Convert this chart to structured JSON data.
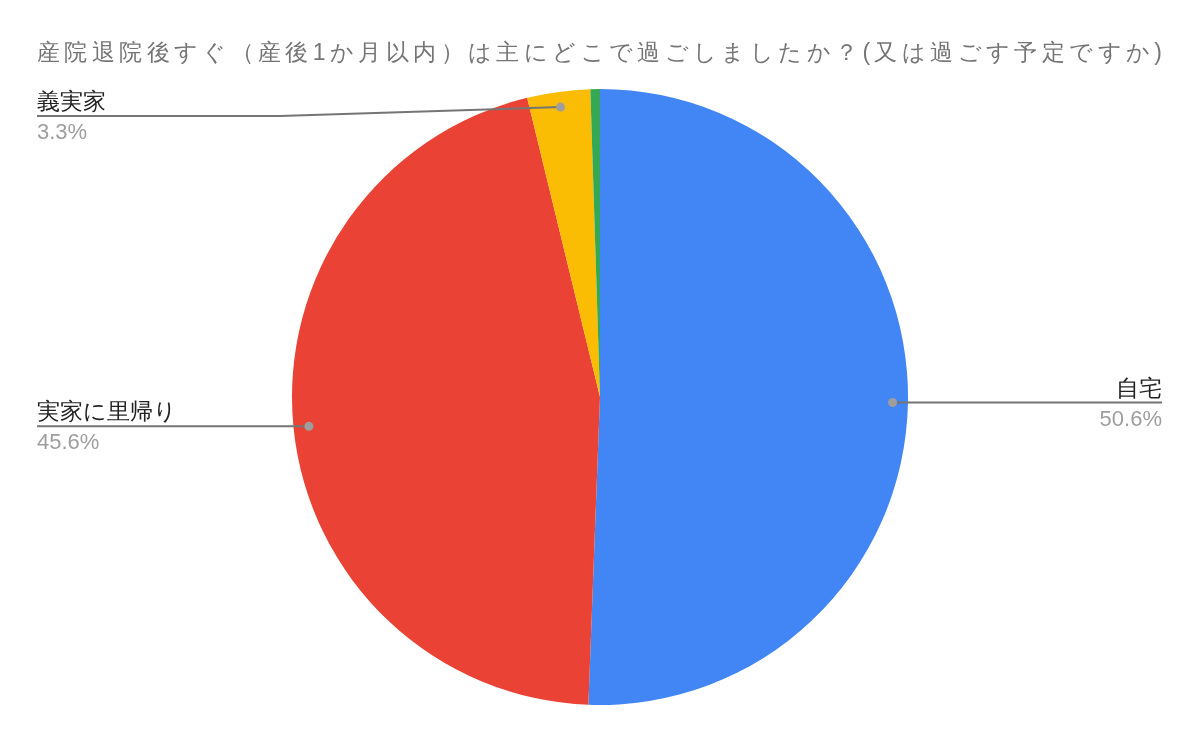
{
  "chart_data": {
    "type": "pie",
    "title": "産院退院後すぐ（産後1か月以内）は主にどこで過ごしましたか？(又は過ごす予定ですか)",
    "categories": [
      "自宅",
      "実家に里帰り",
      "義実家",
      null
    ],
    "values": [
      50.6,
      45.6,
      3.3,
      0.5
    ],
    "colors": [
      "#4285f4",
      "#ea4335",
      "#fbbc04",
      "#34a853"
    ],
    "value_labels": [
      "50.6%",
      "45.6%",
      "3.3%",
      null
    ]
  }
}
